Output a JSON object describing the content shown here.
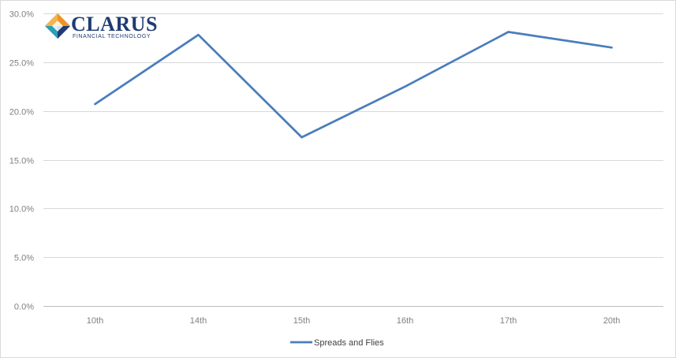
{
  "logo": {
    "name": "CLARUS",
    "tagline": "FINANCIAL TECHNOLOGY",
    "colors": {
      "navy": "#1f3b73",
      "orange": "#f2911f",
      "teal": "#2a9fb5"
    }
  },
  "chart_data": {
    "type": "line",
    "title": "",
    "xlabel": "",
    "ylabel": "",
    "categories": [
      "10th",
      "14th",
      "15th",
      "16th",
      "17th",
      "20th"
    ],
    "series": [
      {
        "name": "Spreads and Flies",
        "values": [
          20.7,
          27.8,
          17.3,
          22.5,
          28.1,
          26.5
        ],
        "color": "#4a7ebb"
      }
    ],
    "ylim": [
      0,
      30
    ],
    "yticks": [
      "0.0%",
      "5.0%",
      "10.0%",
      "15.0%",
      "20.0%",
      "25.0%",
      "30.0%"
    ],
    "grid": true,
    "gridColor": "#d9d9d9",
    "legend": "bottom-center"
  }
}
